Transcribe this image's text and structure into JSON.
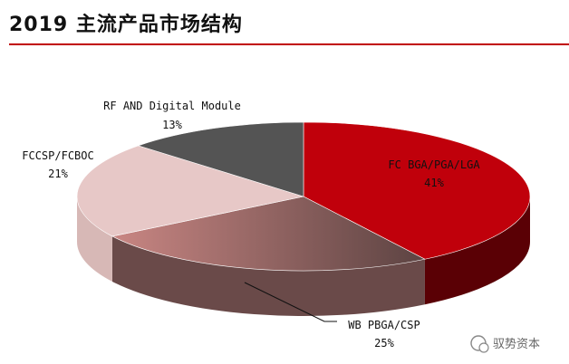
{
  "header": {
    "title": "2019 主流产品市场结构"
  },
  "colors": {
    "rule": "#c00000",
    "fc_bga": "#c0000b",
    "fc_bga_side": "#5a0005",
    "wb_pbga": "#c98683",
    "wb_pbga_side": "#6a4a49",
    "fccsp": "#e7c8c7",
    "fccsp_side": "#d7b8b6",
    "rf_digital": "#545454",
    "rf_digital_side": "#363636"
  },
  "chart_data": {
    "type": "pie",
    "title": "2019 主流产品市场结构",
    "series": [
      {
        "name": "FC BGA/PGA/LGA",
        "value": 41,
        "label": "41%"
      },
      {
        "name": "WB PBGA/CSP",
        "value": 25,
        "label": "25%"
      },
      {
        "name": "FCCSP/FCBOC",
        "value": 21,
        "label": "21%"
      },
      {
        "name": "RF AND Digital Module",
        "value": 13,
        "label": "13%"
      }
    ]
  },
  "watermark": {
    "text": "驭势资本"
  }
}
